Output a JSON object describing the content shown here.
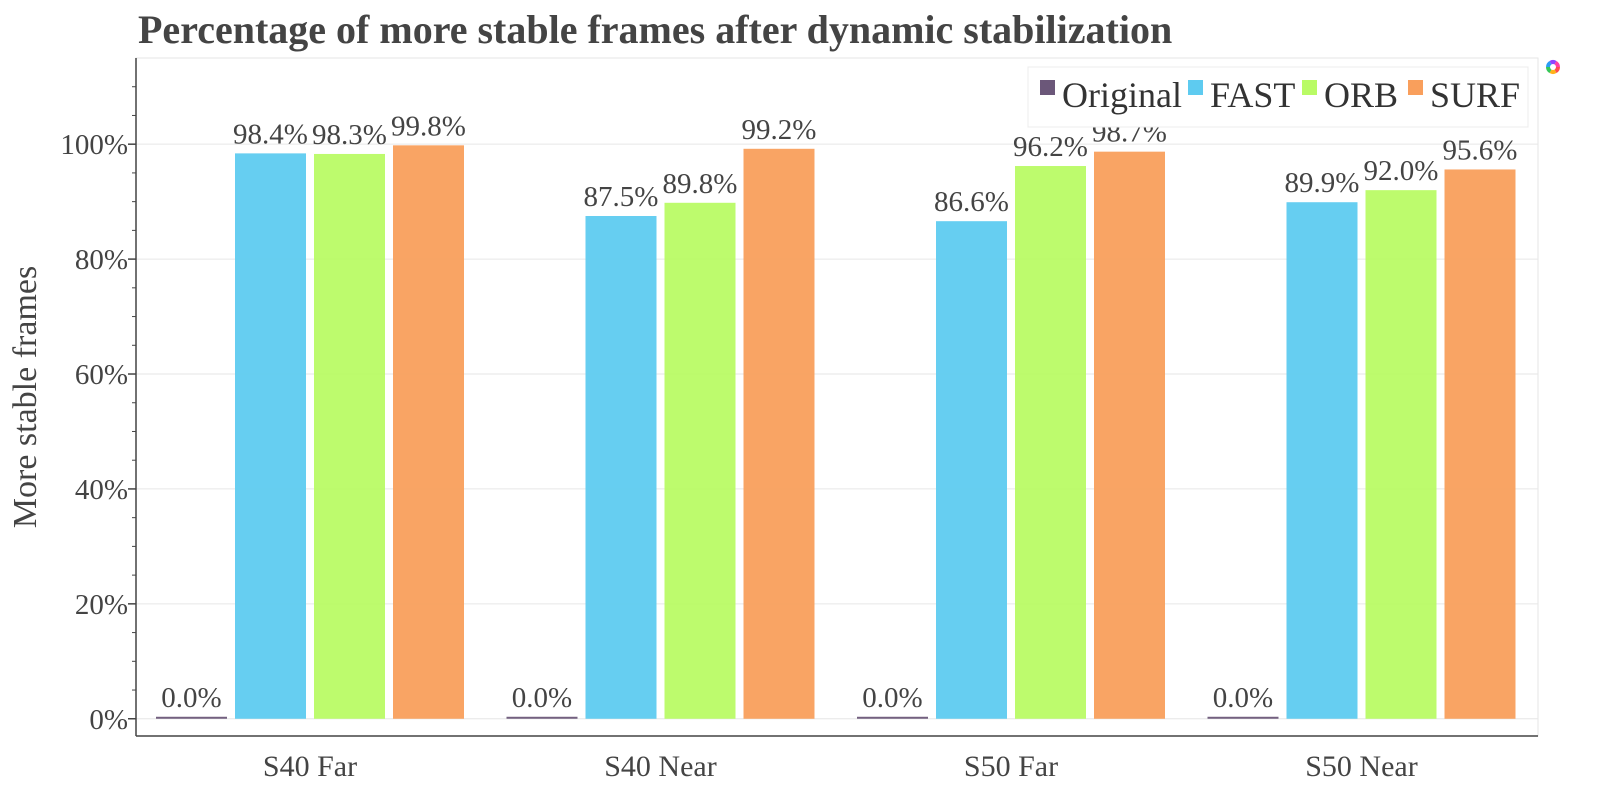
{
  "chart_data": {
    "type": "bar",
    "title": "Percentage of more stable frames after dynamic stabilization",
    "xlabel": "",
    "ylabel": "More stable frames",
    "categories": [
      "S40 Far",
      "S40 Near",
      "S50 Far",
      "S50 Near"
    ],
    "series": [
      {
        "name": "Original",
        "color": "#6b5779",
        "values": [
          0.0,
          0.0,
          0.0,
          0.0
        ],
        "labels": [
          "0.0%",
          "0.0%",
          "0.0%",
          "0.0%"
        ]
      },
      {
        "name": "FAST",
        "color": "#5ecbf0",
        "values": [
          98.4,
          87.5,
          86.6,
          89.9
        ],
        "labels": [
          "98.4%",
          "87.5%",
          "86.6%",
          "89.9%"
        ]
      },
      {
        "name": "ORB",
        "color": "#b9fb65",
        "values": [
          98.3,
          89.8,
          96.2,
          92.0
        ],
        "labels": [
          "98.3%",
          "89.8%",
          "96.2%",
          "92.0%"
        ]
      },
      {
        "name": "SURF",
        "color": "#f99f5c",
        "values": [
          99.8,
          99.2,
          98.7,
          95.6
        ],
        "labels": [
          "99.8%",
          "99.2%",
          "98.7%",
          "95.6%"
        ]
      }
    ],
    "ylim": [
      -3,
      115
    ],
    "yticks": [
      0,
      20,
      40,
      60,
      80,
      100
    ],
    "ytick_labels": [
      "0%",
      "20%",
      "40%",
      "60%",
      "80%",
      "100%"
    ],
    "grid": true,
    "legend_position": "top-right"
  }
}
